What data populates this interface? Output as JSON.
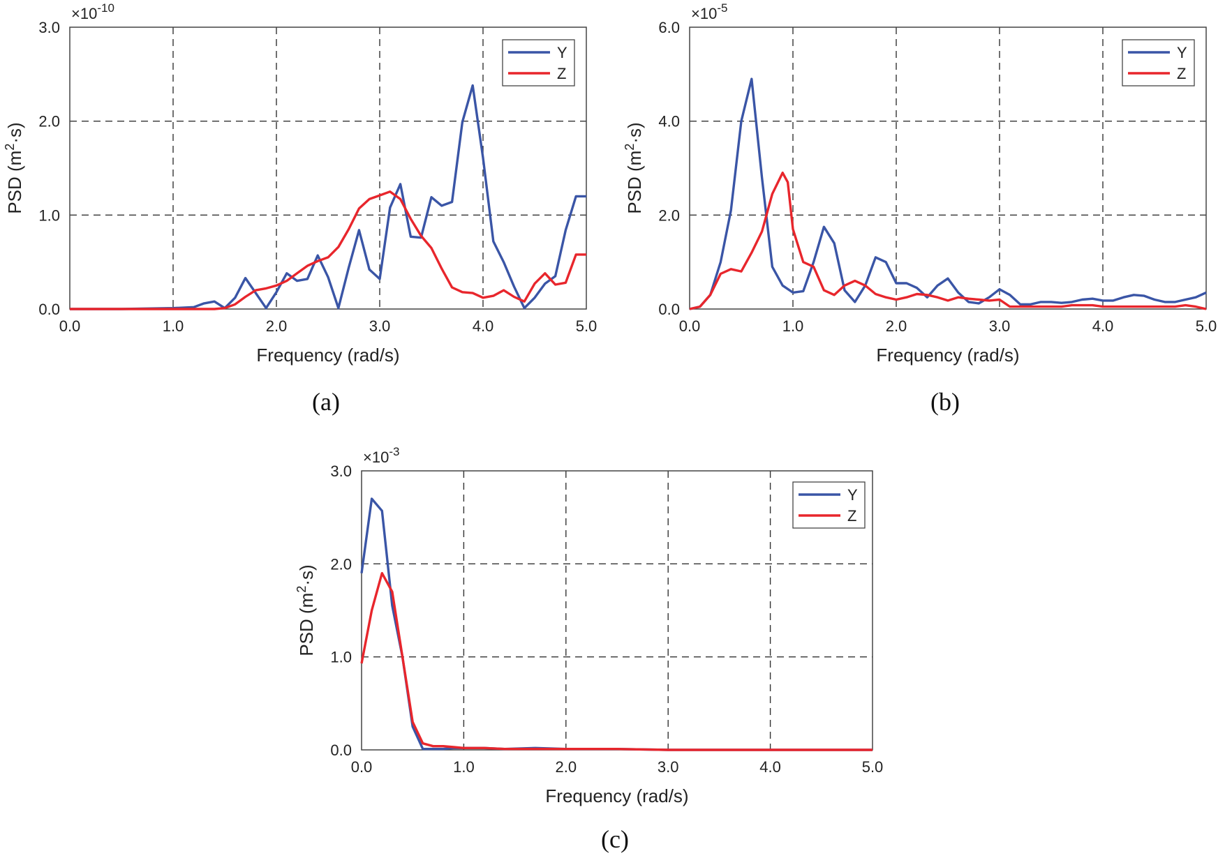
{
  "colors": {
    "Y": "#3a55a6",
    "Z": "#e8262c"
  },
  "chart_data": [
    {
      "type": "line",
      "caption": "(a)",
      "xlabel": "Frequency (rad/s)",
      "ylabel": "PSD (m²·s)",
      "ylabel_main": "PSD (m",
      "ylabel_sup": "2",
      "ylabel_end": "·s)",
      "exponent_prefix": "×10",
      "exponent_power": "-10",
      "xlim": [
        0,
        5
      ],
      "ylim": [
        0,
        3
      ],
      "xticks": [
        "0.0",
        "1.0",
        "2.0",
        "3.0",
        "4.0",
        "5.0"
      ],
      "yticks": [
        "0.0",
        "1.0",
        "2.0",
        "3.0"
      ],
      "legend": [
        "Y",
        "Z"
      ],
      "series": [
        {
          "name": "Y",
          "x": [
            0,
            0.5,
            1.0,
            1.2,
            1.3,
            1.4,
            1.5,
            1.6,
            1.7,
            1.8,
            1.9,
            2.0,
            2.1,
            2.2,
            2.3,
            2.4,
            2.5,
            2.6,
            2.7,
            2.8,
            2.9,
            3.0,
            3.1,
            3.2,
            3.3,
            3.4,
            3.5,
            3.6,
            3.7,
            3.8,
            3.9,
            4.0,
            4.1,
            4.2,
            4.3,
            4.4,
            4.5,
            4.6,
            4.7,
            4.8,
            4.9,
            5.0
          ],
          "values": [
            0,
            0,
            0.01,
            0.02,
            0.06,
            0.08,
            0.01,
            0.12,
            0.33,
            0.17,
            0.01,
            0.18,
            0.38,
            0.3,
            0.32,
            0.57,
            0.34,
            0.01,
            0.44,
            0.84,
            0.42,
            0.32,
            1.08,
            1.33,
            0.77,
            0.76,
            1.19,
            1.1,
            1.14,
            1.99,
            2.38,
            1.61,
            0.72,
            0.5,
            0.24,
            0.01,
            0.12,
            0.27,
            0.35,
            0.84,
            1.2,
            1.2
          ]
        },
        {
          "name": "Z",
          "x": [
            0,
            0.5,
            1.0,
            1.4,
            1.5,
            1.6,
            1.7,
            1.8,
            1.9,
            2.0,
            2.1,
            2.2,
            2.3,
            2.4,
            2.5,
            2.6,
            2.7,
            2.8,
            2.9,
            3.0,
            3.1,
            3.2,
            3.3,
            3.4,
            3.5,
            3.6,
            3.7,
            3.8,
            3.9,
            4.0,
            4.1,
            4.2,
            4.3,
            4.4,
            4.5,
            4.6,
            4.7,
            4.8,
            4.9,
            5.0
          ],
          "values": [
            0,
            0,
            0,
            0,
            0.01,
            0.05,
            0.13,
            0.2,
            0.22,
            0.25,
            0.3,
            0.38,
            0.46,
            0.51,
            0.55,
            0.66,
            0.85,
            1.07,
            1.17,
            1.21,
            1.25,
            1.17,
            0.96,
            0.78,
            0.65,
            0.43,
            0.23,
            0.18,
            0.17,
            0.12,
            0.14,
            0.2,
            0.13,
            0.08,
            0.27,
            0.38,
            0.26,
            0.28,
            0.58,
            0.58
          ]
        }
      ]
    },
    {
      "type": "line",
      "caption": "(b)",
      "xlabel": "Frequency (rad/s)",
      "ylabel": "PSD (m²·s)",
      "ylabel_main": "PSD (m",
      "ylabel_sup": "2",
      "ylabel_end": "·s)",
      "exponent_prefix": "×10",
      "exponent_power": "-5",
      "xlim": [
        0,
        5
      ],
      "ylim": [
        0,
        6
      ],
      "xticks": [
        "0.0",
        "1.0",
        "2.0",
        "3.0",
        "4.0",
        "5.0"
      ],
      "yticks": [
        "0.0",
        "2.0",
        "4.0",
        "6.0"
      ],
      "legend": [
        "Y",
        "Z"
      ],
      "series": [
        {
          "name": "Y",
          "x": [
            0,
            0.1,
            0.2,
            0.3,
            0.4,
            0.5,
            0.6,
            0.7,
            0.8,
            0.9,
            1.0,
            1.1,
            1.2,
            1.3,
            1.4,
            1.5,
            1.6,
            1.7,
            1.8,
            1.9,
            2.0,
            2.1,
            2.2,
            2.3,
            2.4,
            2.5,
            2.6,
            2.7,
            2.8,
            2.9,
            3.0,
            3.1,
            3.2,
            3.3,
            3.4,
            3.5,
            3.6,
            3.7,
            3.8,
            3.9,
            4.0,
            4.1,
            4.2,
            4.3,
            4.4,
            4.5,
            4.6,
            4.7,
            4.8,
            4.9,
            5.0
          ],
          "values": [
            0,
            0.05,
            0.3,
            1.0,
            2.1,
            4.0,
            4.9,
            2.8,
            0.9,
            0.5,
            0.35,
            0.38,
            1.0,
            1.75,
            1.4,
            0.4,
            0.15,
            0.5,
            1.1,
            1.0,
            0.55,
            0.55,
            0.45,
            0.25,
            0.5,
            0.65,
            0.35,
            0.15,
            0.12,
            0.25,
            0.42,
            0.3,
            0.1,
            0.1,
            0.15,
            0.15,
            0.13,
            0.15,
            0.2,
            0.22,
            0.18,
            0.18,
            0.25,
            0.3,
            0.28,
            0.2,
            0.15,
            0.15,
            0.2,
            0.25,
            0.35
          ]
        },
        {
          "name": "Z",
          "x": [
            0,
            0.1,
            0.2,
            0.3,
            0.4,
            0.5,
            0.6,
            0.7,
            0.8,
            0.9,
            0.95,
            1.0,
            1.1,
            1.2,
            1.3,
            1.4,
            1.5,
            1.6,
            1.7,
            1.8,
            1.9,
            2.0,
            2.1,
            2.2,
            2.3,
            2.4,
            2.5,
            2.6,
            2.7,
            2.8,
            2.9,
            3.0,
            3.1,
            3.2,
            3.3,
            3.4,
            3.5,
            3.6,
            3.7,
            3.8,
            3.9,
            4.0,
            4.1,
            4.2,
            4.3,
            4.4,
            4.5,
            4.6,
            4.7,
            4.8,
            4.9,
            5.0
          ],
          "values": [
            0,
            0.05,
            0.3,
            0.75,
            0.85,
            0.8,
            1.2,
            1.65,
            2.45,
            2.9,
            2.7,
            1.7,
            1.0,
            0.9,
            0.4,
            0.3,
            0.5,
            0.6,
            0.5,
            0.32,
            0.25,
            0.2,
            0.25,
            0.32,
            0.3,
            0.25,
            0.18,
            0.25,
            0.22,
            0.2,
            0.18,
            0.2,
            0.05,
            0.05,
            0.05,
            0.05,
            0.05,
            0.05,
            0.08,
            0.08,
            0.08,
            0.05,
            0.05,
            0.05,
            0.05,
            0.05,
            0.05,
            0.05,
            0.05,
            0.08,
            0.05,
            0
          ]
        }
      ]
    },
    {
      "type": "line",
      "caption": "(c)",
      "xlabel": "Frequency (rad/s)",
      "ylabel": "PSD (m²·s)",
      "ylabel_main": "PSD (m",
      "ylabel_sup": "2",
      "ylabel_end": "·s)",
      "exponent_prefix": "×10",
      "exponent_power": "-3",
      "xlim": [
        0,
        5
      ],
      "ylim": [
        0,
        3
      ],
      "xticks": [
        "0.0",
        "1.0",
        "2.0",
        "3.0",
        "4.0",
        "5.0"
      ],
      "yticks": [
        "0.0",
        "1.0",
        "2.0",
        "3.0"
      ],
      "legend": [
        "Y",
        "Z"
      ],
      "series": [
        {
          "name": "Y",
          "x": [
            0,
            0.1,
            0.2,
            0.3,
            0.4,
            0.5,
            0.6,
            0.7,
            0.8,
            0.9,
            1.0,
            1.2,
            1.4,
            1.7,
            2.0,
            2.5,
            3.0,
            3.5,
            4.0,
            4.5,
            5.0
          ],
          "values": [
            1.9,
            2.7,
            2.57,
            1.55,
            1.0,
            0.25,
            0.01,
            0.01,
            0.01,
            0.02,
            0.02,
            0.02,
            0.01,
            0.02,
            0.01,
            0.01,
            0,
            0,
            0,
            0,
            0
          ]
        },
        {
          "name": "Z",
          "x": [
            0,
            0.1,
            0.2,
            0.3,
            0.4,
            0.5,
            0.6,
            0.7,
            0.8,
            0.9,
            1.0,
            1.2,
            1.4,
            1.7,
            2.0,
            2.5,
            3.0,
            3.5,
            4.0,
            4.5,
            5.0
          ],
          "values": [
            0.93,
            1.5,
            1.9,
            1.7,
            1.0,
            0.3,
            0.07,
            0.04,
            0.04,
            0.03,
            0.02,
            0.02,
            0.01,
            0.01,
            0.01,
            0.01,
            0,
            0,
            0,
            0,
            0
          ]
        }
      ]
    }
  ]
}
